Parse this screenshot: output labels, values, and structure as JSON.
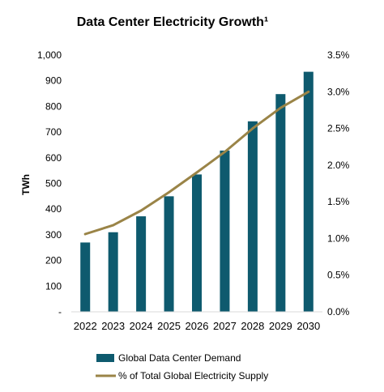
{
  "chart_data": {
    "type": "bar",
    "title": "Data Center Electricity Growth¹",
    "ylabel": "TWh",
    "xlabel": "",
    "categories": [
      "2022",
      "2023",
      "2024",
      "2025",
      "2026",
      "2027",
      "2028",
      "2029",
      "2030"
    ],
    "series": [
      {
        "name": "Global Data Center Demand",
        "type": "bar",
        "axis": "left",
        "color": "#0e5a6e",
        "values": [
          270,
          310,
          372,
          450,
          535,
          628,
          742,
          848,
          935
        ]
      },
      {
        "name": "% of Total Global Electricity Supply",
        "type": "line",
        "axis": "right",
        "color": "#9a8447",
        "values": [
          1.06,
          1.18,
          1.38,
          1.63,
          1.9,
          2.18,
          2.5,
          2.78,
          3.0
        ]
      }
    ],
    "ylim": [
      0,
      1000
    ],
    "y_ticks": [
      "-",
      "100",
      "200",
      "300",
      "400",
      "500",
      "600",
      "700",
      "800",
      "900",
      "1,000"
    ],
    "y2lim": [
      0,
      3.5
    ],
    "y2_ticks": [
      "0.0%",
      "0.5%",
      "1.0%",
      "1.5%",
      "2.0%",
      "2.5%",
      "3.0%",
      "3.5%"
    ],
    "grid": false,
    "legend_position": "bottom"
  }
}
